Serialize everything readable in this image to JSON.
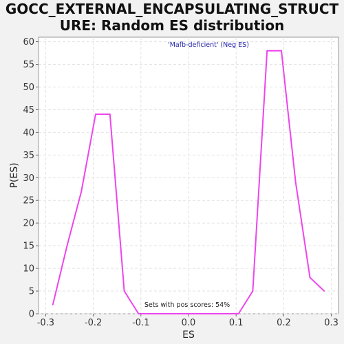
{
  "chart_data": {
    "type": "line",
    "title_lines": [
      "GOCC_EXTERNAL_ENCAPSULATING_STRUCT",
      "URE: Random ES distribution"
    ],
    "subtitle": "'Mafb-deficient' (Neg ES)",
    "annotation": "Sets with pos scores: 54%",
    "xlabel": "ES",
    "ylabel": "P(ES)",
    "xlim": [
      -0.315,
      0.315
    ],
    "ylim": [
      0,
      61
    ],
    "x_ticks": [
      -0.3,
      -0.2,
      -0.1,
      0.0,
      0.1,
      0.2,
      0.3
    ],
    "x_tick_labels": [
      "-0.3",
      "-0.2",
      "-0.1",
      "0.0",
      "0.1",
      "0.2",
      "0.3"
    ],
    "y_ticks": [
      0,
      5,
      10,
      15,
      20,
      25,
      30,
      35,
      40,
      45,
      50,
      55,
      60
    ],
    "y_tick_labels": [
      "0",
      "5",
      "10",
      "15",
      "20",
      "25",
      "30",
      "35",
      "40",
      "45",
      "50",
      "55",
      "60"
    ],
    "grid": true,
    "colors": {
      "line": "#ee44ee",
      "subtitle": "#2222aa",
      "grid": "#e2e2e2",
      "plot_background": "#ffffff"
    },
    "series": [
      {
        "x": [
          -0.285,
          -0.255,
          -0.225,
          -0.195,
          -0.165,
          -0.135,
          -0.105,
          -0.075,
          -0.045,
          -0.015,
          0.015,
          0.045,
          0.075,
          0.105,
          0.135,
          0.165,
          0.195,
          0.225,
          0.255,
          0.285
        ],
        "values": [
          2,
          15,
          27,
          44,
          44,
          5,
          0,
          0,
          0,
          0,
          0,
          0,
          0,
          0,
          5,
          58,
          58,
          29,
          8,
          5
        ]
      }
    ]
  }
}
